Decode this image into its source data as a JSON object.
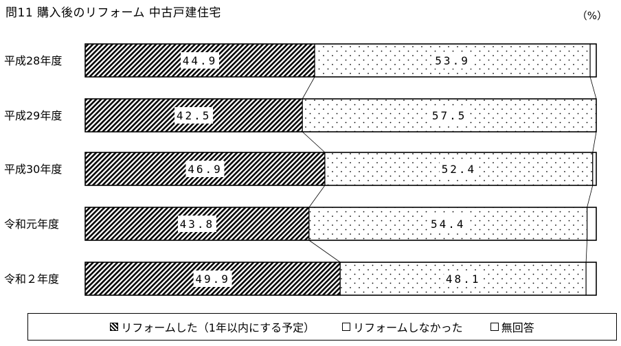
{
  "title": "問11 購入後のリフォーム 中古戸建住宅",
  "unit_label": "（%）",
  "chart_data": {
    "type": "bar",
    "orientation": "horizontal",
    "stacked": true,
    "categories": [
      "平成28年度",
      "平成29年度",
      "平成30年度",
      "令和元年度",
      "令和２年度"
    ],
    "series": [
      {
        "name": "リフォームした（1年以内にする予定）",
        "values": [
          44.9,
          42.5,
          46.9,
          43.8,
          49.9
        ],
        "labels": [
          "44.9",
          "42.5",
          "46.9",
          "43.8",
          "49.9"
        ],
        "pattern": "diagonal-hatch"
      },
      {
        "name": "リフォームしなかった",
        "values": [
          53.9,
          57.5,
          52.4,
          54.4,
          48.1
        ],
        "labels": [
          "53.9",
          "57.5",
          "52.4",
          "54.4",
          "48.1"
        ],
        "pattern": "dots"
      },
      {
        "name": "無回答",
        "values": [
          1.2,
          0.0,
          0.7,
          1.8,
          2.0
        ],
        "pattern": "blank"
      }
    ],
    "xlim": [
      0,
      100
    ],
    "legend_position": "bottom"
  }
}
